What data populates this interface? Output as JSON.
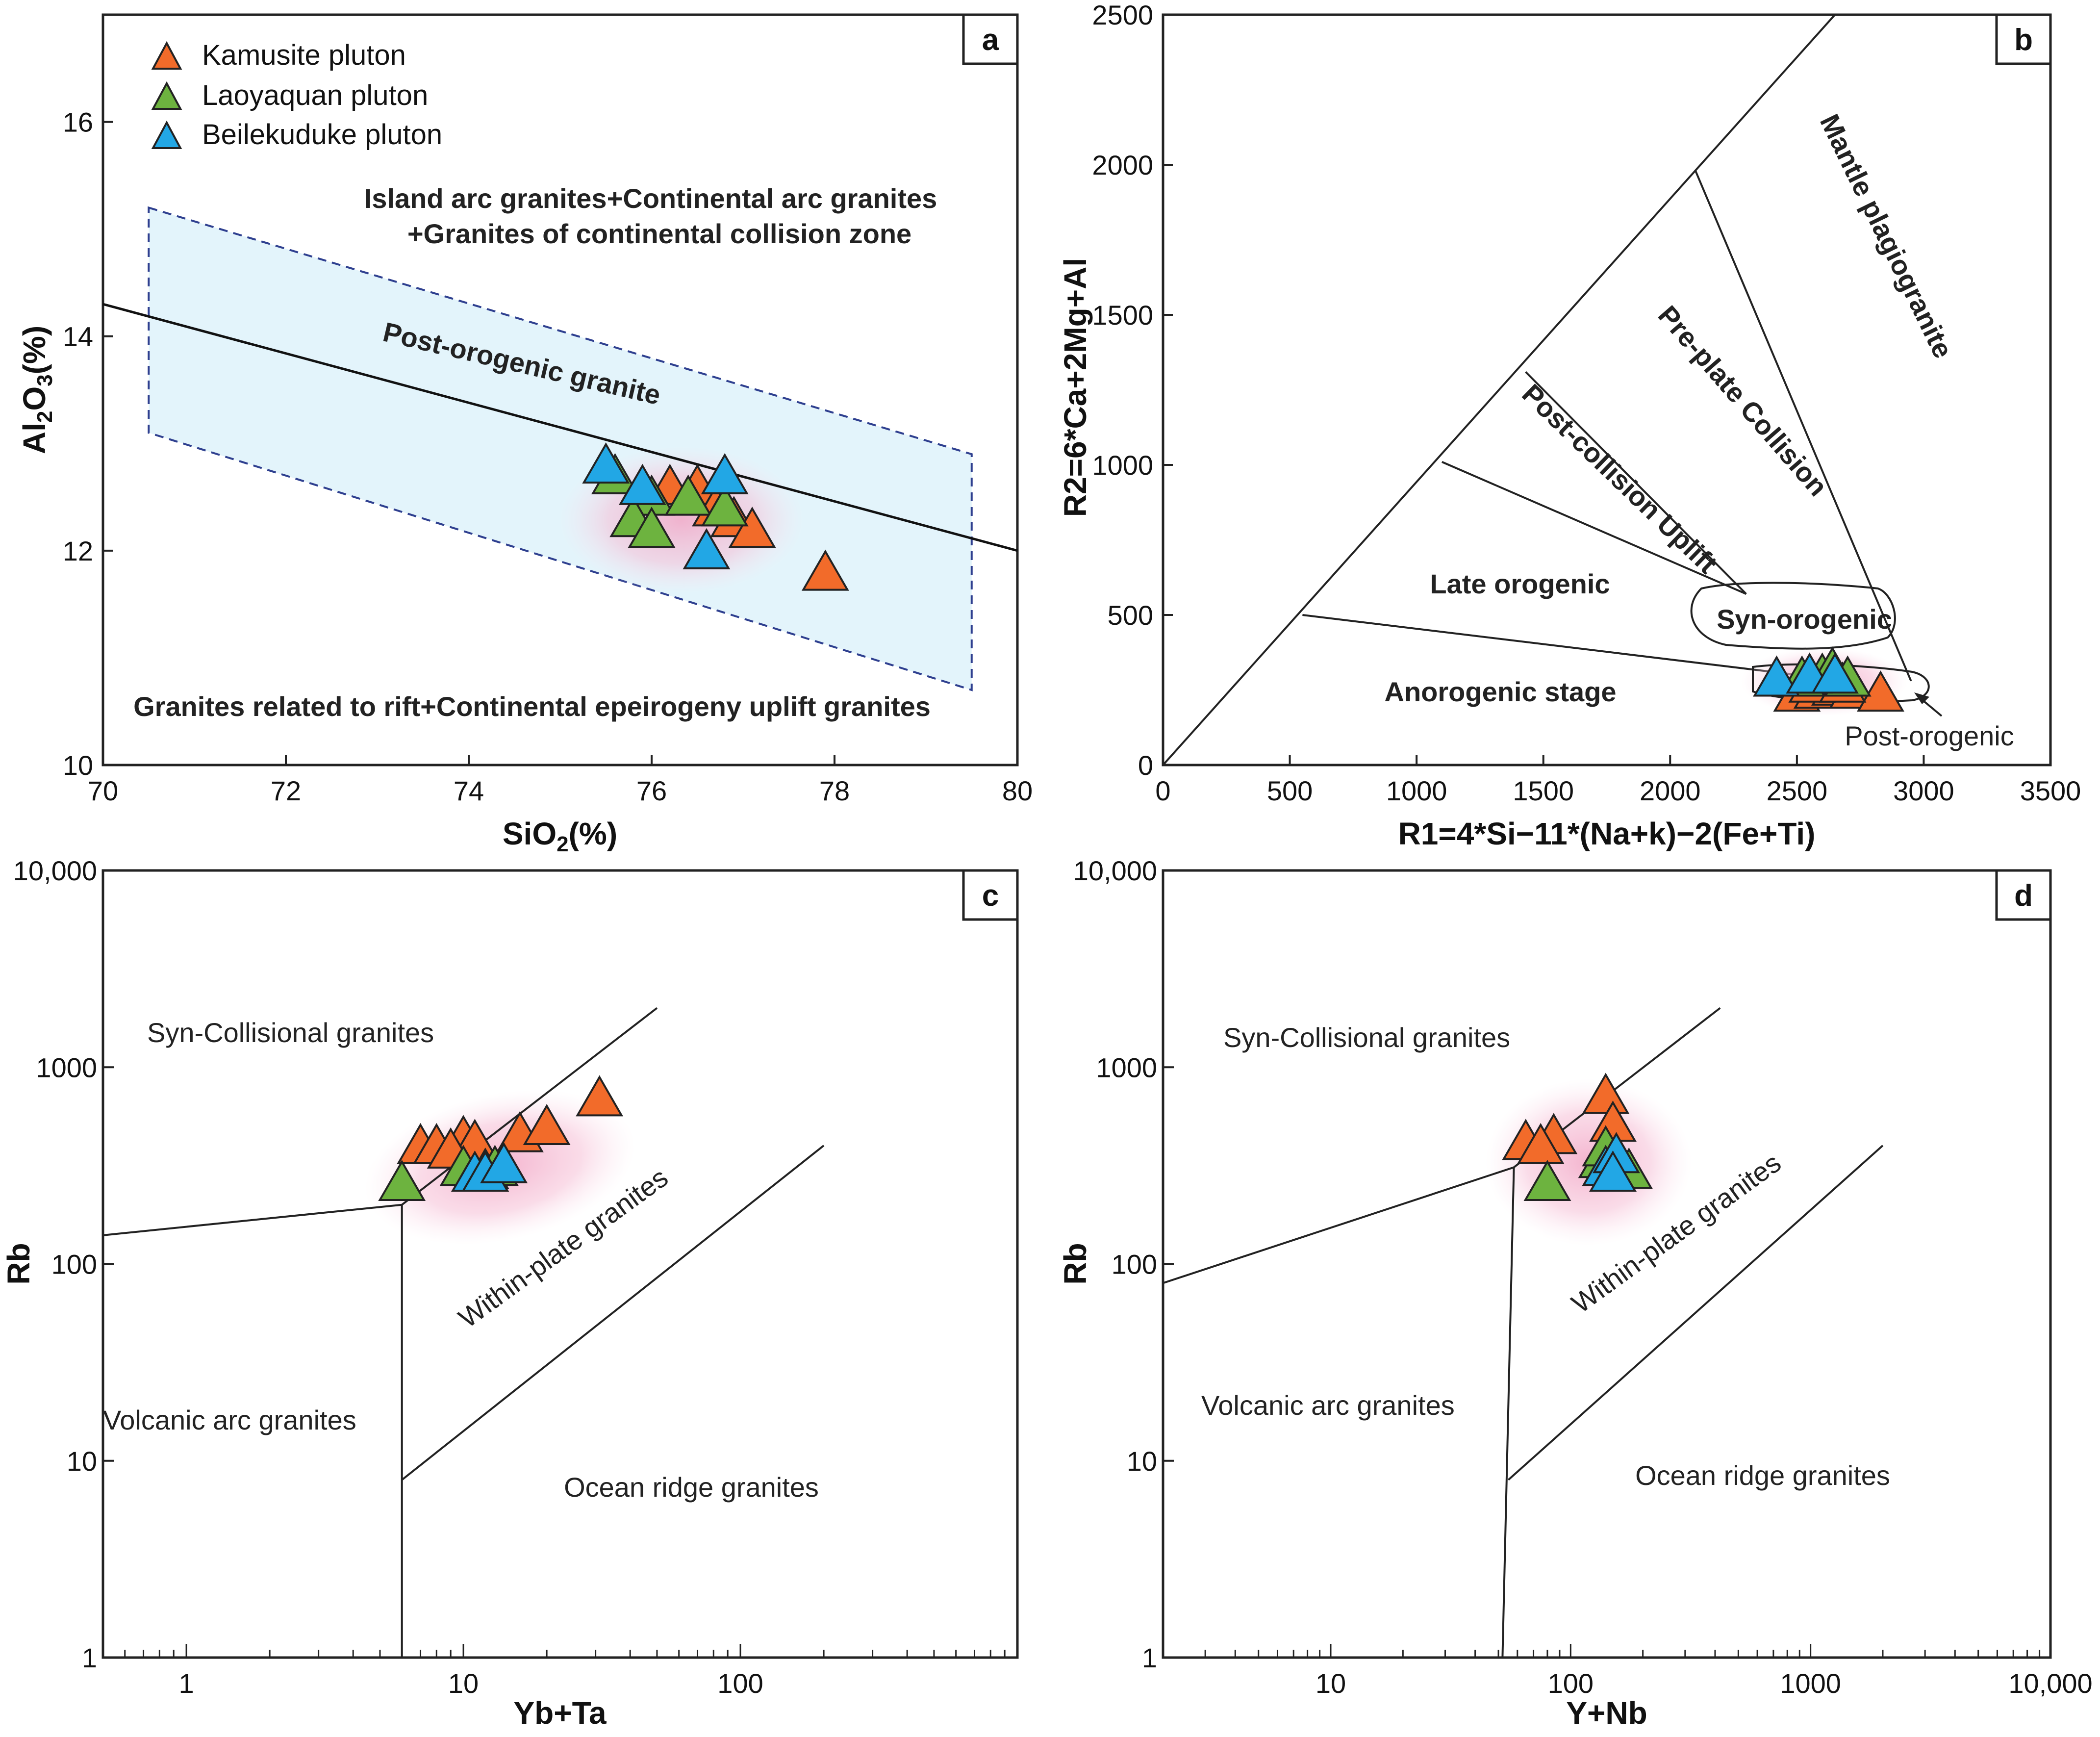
{
  "legend": [
    {
      "name": "Kamusite pluton",
      "color": "#f26b2a"
    },
    {
      "name": "Laoyaquan pluton",
      "color": "#6db33f"
    },
    {
      "name": "Beilekuduke pluton",
      "color": "#22a7e5"
    }
  ],
  "chart_data": [
    {
      "type": "scatter",
      "panel": "a",
      "xlabel": "SiO",
      "xlabel_sub": "2",
      "xlabel_end": "(%)",
      "ylabel": "Al",
      "ylabel_sub1": "2",
      "ylabel_mid": "O",
      "ylabel_sub2": "3",
      "ylabel_end": "(%)",
      "xlim": [
        70,
        80
      ],
      "ylim": [
        10,
        17
      ],
      "xticks": [
        "70",
        "72",
        "74",
        "76",
        "78",
        "80"
      ],
      "yticks": [
        "10",
        "12",
        "14",
        "16"
      ],
      "regions": {
        "upper_1": "Island arc granites+Continental arc granites",
        "upper_2": "+Granites  of continental collision zone",
        "line": "Post-orogenic granite",
        "lower": "Granites related to rift+Continental epeirogeny uplift granites"
      },
      "divider_line": [
        [
          70,
          14.3
        ],
        [
          80,
          12.0
        ]
      ],
      "field_polygon": [
        [
          70.5,
          15.2
        ],
        [
          79.5,
          12.9
        ],
        [
          79.5,
          10.7
        ],
        [
          70.5,
          13.1
        ]
      ],
      "series": [
        {
          "name": "Kamusite pluton",
          "points": [
            [
              76.2,
              12.6
            ],
            [
              76.5,
              12.6
            ],
            [
              76.7,
              12.4
            ],
            [
              76.9,
              12.3
            ],
            [
              77.1,
              12.2
            ],
            [
              77.9,
              11.8
            ]
          ]
        },
        {
          "name": "Laoyaquan pluton",
          "points": [
            [
              75.6,
              12.7
            ],
            [
              76.0,
              12.5
            ],
            [
              76.4,
              12.5
            ],
            [
              76.8,
              12.4
            ],
            [
              75.8,
              12.3
            ],
            [
              76.0,
              12.2
            ]
          ]
        },
        {
          "name": "Beilekuduke pluton",
          "points": [
            [
              75.5,
              12.8
            ],
            [
              75.9,
              12.6
            ],
            [
              76.8,
              12.7
            ],
            [
              76.6,
              12.0
            ]
          ]
        }
      ]
    },
    {
      "type": "scatter",
      "panel": "b",
      "xlabel": "R1=4*Si−11*(Na+k)−2(Fe+Ti)",
      "ylabel": "R2=6*Ca+2Mg+Al",
      "xlim": [
        0,
        3500
      ],
      "ylim": [
        0,
        2500
      ],
      "xticks": [
        "0",
        "500",
        "1000",
        "1500",
        "2000",
        "2500",
        "3000",
        "3500"
      ],
      "yticks": [
        "0",
        "500",
        "1000",
        "1500",
        "2000",
        "2500"
      ],
      "regions": {
        "mantle": "Mantle plagiogranite",
        "preplate": "Pre-plate Collision",
        "postcollision": "Post-collision Uplift",
        "late": "Late orogenic",
        "syn": "Syn-orogenic",
        "anorogenic": "Anorogenic stage",
        "post": "Post-orogenic"
      },
      "boundary_lines": [
        [
          [
            0,
            0
          ],
          [
            2650,
            2500
          ]
        ],
        [
          [
            2100,
            1980
          ],
          [
            2950,
            280
          ]
        ],
        [
          [
            1430,
            1310
          ],
          [
            2300,
            570
          ]
        ],
        [
          [
            1100,
            1010
          ],
          [
            2300,
            570
          ]
        ],
        [
          [
            550,
            500
          ],
          [
            2700,
            280
          ]
        ]
      ],
      "series": [
        {
          "name": "Kamusite pluton",
          "points": [
            [
              2500,
              240
            ],
            [
              2580,
              250
            ],
            [
              2650,
              260
            ],
            [
              2720,
              250
            ],
            [
              2830,
              240
            ],
            [
              2560,
              270
            ],
            [
              2680,
              270
            ]
          ]
        },
        {
          "name": "Laoyaquan pluton",
          "points": [
            [
              2520,
              290
            ],
            [
              2600,
              300
            ],
            [
              2640,
              320
            ],
            [
              2700,
              290
            ]
          ]
        },
        {
          "name": "Beilekuduke pluton",
          "points": [
            [
              2420,
              290
            ],
            [
              2550,
              300
            ],
            [
              2650,
              300
            ]
          ]
        }
      ]
    },
    {
      "type": "scatter",
      "panel": "c",
      "xlabel": "Yb+Ta",
      "ylabel": "Rb",
      "xscale": "log",
      "yscale": "log",
      "xlim": [
        0.5,
        1000
      ],
      "ylim": [
        1,
        10000
      ],
      "xticks": [
        "1",
        "10",
        "100"
      ],
      "yticks": [
        "1",
        "10",
        "100",
        "1000",
        "10,000"
      ],
      "regions": {
        "syn": "Syn-Collisional granites",
        "within": "Within-plate granites",
        "volcanic": "Volcanic arc granites",
        "ocean": "Ocean ridge granites"
      },
      "boundary_lines": [
        [
          [
            0.5,
            140
          ],
          [
            6,
            200
          ],
          [
            50,
            2000
          ]
        ],
        [
          [
            6,
            1
          ],
          [
            6,
            200
          ]
        ],
        [
          [
            6,
            8
          ],
          [
            200,
            400
          ]
        ]
      ],
      "series": [
        {
          "name": "Kamusite pluton",
          "points": [
            [
              7,
              400
            ],
            [
              8,
              400
            ],
            [
              10,
              440
            ],
            [
              11,
              420
            ],
            [
              16,
              460
            ],
            [
              20,
              500
            ],
            [
              31,
              700
            ],
            [
              9,
              380
            ]
          ]
        },
        {
          "name": "Laoyaquan pluton",
          "points": [
            [
              6,
              260
            ],
            [
              10,
              310
            ],
            [
              12,
              300
            ],
            [
              13,
              310
            ]
          ]
        },
        {
          "name": "Beilekuduke pluton",
          "points": [
            [
              11,
              290
            ],
            [
              12,
              290
            ],
            [
              14,
              320
            ]
          ]
        }
      ]
    },
    {
      "type": "scatter",
      "panel": "d",
      "xlabel": "Y+Nb",
      "ylabel": "Rb",
      "xscale": "log",
      "yscale": "log",
      "xlim": [
        2,
        10000
      ],
      "ylim": [
        1,
        10000
      ],
      "xticks": [
        "10",
        "100",
        "1000",
        "10,000"
      ],
      "yticks": [
        "1",
        "10",
        "100",
        "1000",
        "10,000"
      ],
      "regions": {
        "syn": "Syn-Collisional granites",
        "within": "Within-plate granites",
        "volcanic": "Volcanic arc granites",
        "ocean": "Ocean ridge granites"
      },
      "boundary_lines": [
        [
          [
            2,
            80
          ],
          [
            58,
            310
          ],
          [
            420,
            2000
          ]
        ],
        [
          [
            58,
            310
          ],
          [
            52,
            1
          ]
        ],
        [
          [
            55,
            8
          ],
          [
            2000,
            400
          ]
        ]
      ],
      "series": [
        {
          "name": "Kamusite pluton",
          "points": [
            [
              65,
              420
            ],
            [
              85,
              450
            ],
            [
              140,
              720
            ],
            [
              150,
              520
            ],
            [
              75,
              400
            ]
          ]
        },
        {
          "name": "Laoyaquan pluton",
          "points": [
            [
              80,
              260
            ],
            [
              135,
              340
            ],
            [
              155,
              320
            ],
            [
              175,
              300
            ],
            [
              140,
              390
            ]
          ]
        },
        {
          "name": "Beilekuduke pluton",
          "points": [
            [
              140,
              310
            ],
            [
              155,
              360
            ],
            [
              150,
              290
            ]
          ]
        }
      ]
    }
  ]
}
